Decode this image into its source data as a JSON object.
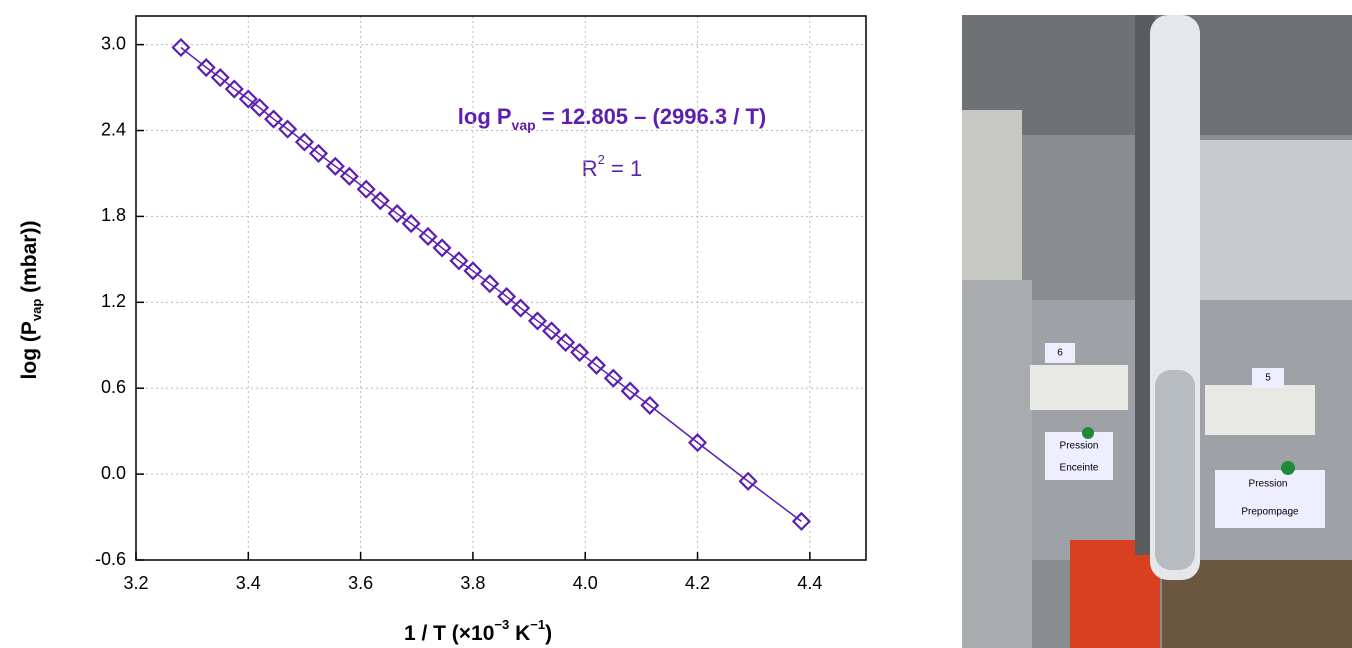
{
  "chart_data": {
    "type": "line",
    "x_label": {
      "main": "1 / T (×10",
      "sup1": "−3",
      "mid": " K",
      "sup2": "−1",
      "end": ")"
    },
    "y_label": {
      "main": "log (P",
      "sub": "vap",
      "end": " (mbar))"
    },
    "annotations": {
      "equation": {
        "main": "log P",
        "sub": "vap",
        "end": " = 12.805 – (2996.3 / T)"
      },
      "r2": {
        "main": "R",
        "sup": "2",
        "end": " = 1"
      }
    },
    "x": [
      3.28,
      3.325,
      3.35,
      3.375,
      3.4,
      3.42,
      3.445,
      3.47,
      3.5,
      3.525,
      3.555,
      3.58,
      3.61,
      3.635,
      3.665,
      3.69,
      3.72,
      3.745,
      3.775,
      3.8,
      3.83,
      3.86,
      3.885,
      3.915,
      3.94,
      3.965,
      3.99,
      4.02,
      4.05,
      4.08,
      4.115,
      4.2,
      4.29,
      4.385
    ],
    "series": [
      {
        "color": "#5c1fb0",
        "values": [
          2.98,
          2.84,
          2.77,
          2.69,
          2.62,
          2.56,
          2.48,
          2.41,
          2.32,
          2.24,
          2.15,
          2.08,
          1.99,
          1.91,
          1.82,
          1.75,
          1.66,
          1.58,
          1.49,
          1.42,
          1.33,
          1.24,
          1.16,
          1.07,
          1.0,
          0.92,
          0.85,
          0.76,
          0.67,
          0.58,
          0.48,
          0.22,
          -0.05,
          -0.33
        ]
      }
    ],
    "xlim": [
      3.2,
      4.5
    ],
    "xticks": [
      3.2,
      3.4,
      3.6,
      3.8,
      {
        "value": 4,
        "label": "4.0"
      },
      4.2,
      4.4
    ],
    "ylim": [
      -0.6,
      3.2
    ],
    "yticks": [
      -0.6,
      {
        "value": 0,
        "label": "0.0"
      },
      0.6,
      1.2,
      1.8,
      2.4,
      {
        "value": 3,
        "label": "3.0"
      }
    ],
    "grid": true
  },
  "photo": {
    "labels": [
      "6",
      "5",
      "Pression",
      "Enceinte",
      "Pression",
      "Prepompage"
    ]
  }
}
